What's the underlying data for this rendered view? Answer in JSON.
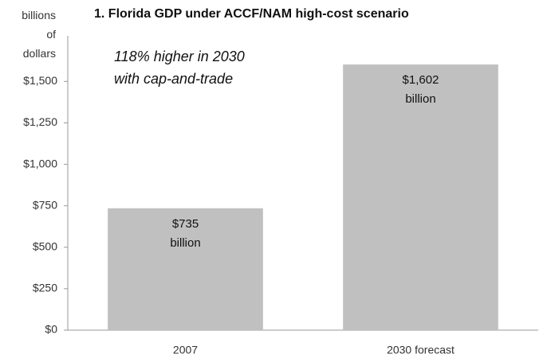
{
  "chart_data": {
    "type": "bar",
    "title": "1. Florida GDP under ACCF/NAM high-cost scenario",
    "ylabel": "billions of dollars",
    "annotation": [
      "118% higher in 2030",
      "with cap-and-trade"
    ],
    "categories": [
      "2007",
      "2030 forecast"
    ],
    "values": [
      735,
      1602
    ],
    "value_labels": [
      "$735 billion",
      "$1,602 billion"
    ],
    "color": "#c0c0c0",
    "ylim": [
      0,
      1775
    ],
    "yticks": [
      {
        "value": 0,
        "label": "$0"
      },
      {
        "value": 250,
        "label": "$250"
      },
      {
        "value": 500,
        "label": "$500"
      },
      {
        "value": 750,
        "label": "$750"
      },
      {
        "value": 1000,
        "label": "$1,000"
      },
      {
        "value": 1250,
        "label": "$1,250"
      },
      {
        "value": 1500,
        "label": "$1,500"
      }
    ],
    "grid": false
  }
}
